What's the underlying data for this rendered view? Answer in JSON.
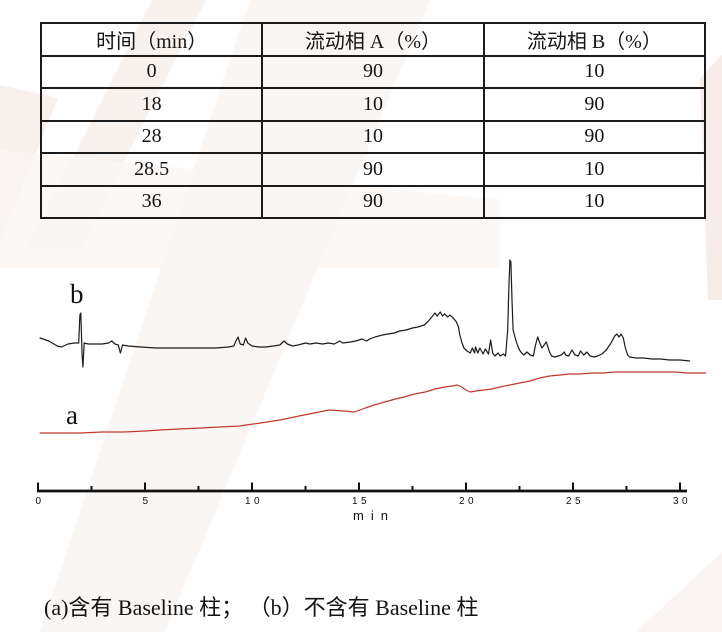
{
  "page": {
    "background": "#fefefe",
    "watermark_color": "#f3e7e2"
  },
  "table": {
    "headers": [
      "时间（min）",
      "流动相 A（%）",
      "流动相 B（%）"
    ],
    "rows": [
      [
        "0",
        "90",
        "10"
      ],
      [
        "18",
        "10",
        "90"
      ],
      [
        "28",
        "10",
        "90"
      ],
      [
        "28.5",
        "90",
        "10"
      ],
      [
        "36",
        "90",
        "10"
      ]
    ]
  },
  "chart_data": {
    "type": "line",
    "title": "",
    "xlabel": "min",
    "ylabel": "",
    "xlim": [
      0,
      30
    ],
    "ylim": [
      0,
      240
    ],
    "y_units": "arbitrary intensity",
    "grid": false,
    "legend_position": "none",
    "x_ticks": [
      "0",
      "5",
      "10",
      "15",
      "20",
      "25",
      "30"
    ],
    "x_major_ticks": [
      0,
      5,
      10,
      15,
      20,
      25,
      30
    ],
    "x_minor_ticks": [
      2.5,
      7.5,
      12.5,
      17.5,
      22.5,
      27.5
    ],
    "series": [
      {
        "name": "b",
        "label": "b",
        "color": "#1c1c1c",
        "description": "不含有 Baseline 柱",
        "points": [
          [
            0.1,
            152
          ],
          [
            0.5,
            149
          ],
          [
            0.9,
            144
          ],
          [
            1.1,
            143
          ],
          [
            1.4,
            146
          ],
          [
            1.7,
            147
          ],
          [
            1.9,
            147
          ],
          [
            1.96,
            175
          ],
          [
            2.0,
            177
          ],
          [
            2.06,
            135
          ],
          [
            2.1,
            123
          ],
          [
            2.16,
            147
          ],
          [
            2.35,
            146
          ],
          [
            2.65,
            146
          ],
          [
            3.0,
            146
          ],
          [
            3.3,
            147
          ],
          [
            3.45,
            149
          ],
          [
            3.6,
            146
          ],
          [
            3.75,
            145
          ],
          [
            3.85,
            137
          ],
          [
            3.95,
            145
          ],
          [
            4.2,
            144
          ],
          [
            4.8,
            143
          ],
          [
            5.5,
            142
          ],
          [
            6.2,
            142
          ],
          [
            6.9,
            142
          ],
          [
            7.6,
            142
          ],
          [
            8.3,
            142
          ],
          [
            8.9,
            143
          ],
          [
            9.15,
            144
          ],
          [
            9.25,
            149
          ],
          [
            9.35,
            153
          ],
          [
            9.45,
            146
          ],
          [
            9.6,
            145
          ],
          [
            9.7,
            152
          ],
          [
            9.8,
            147
          ],
          [
            10.0,
            144
          ],
          [
            10.3,
            143
          ],
          [
            10.65,
            143
          ],
          [
            11.0,
            144
          ],
          [
            11.3,
            145
          ],
          [
            11.5,
            149
          ],
          [
            11.65,
            146
          ],
          [
            11.9,
            144
          ],
          [
            12.15,
            145
          ],
          [
            12.5,
            147
          ],
          [
            12.7,
            146
          ],
          [
            13.0,
            147
          ],
          [
            13.3,
            146
          ],
          [
            13.55,
            147
          ],
          [
            13.85,
            146
          ],
          [
            14.1,
            149
          ],
          [
            14.25,
            147
          ],
          [
            14.6,
            148
          ],
          [
            14.85,
            149
          ],
          [
            15.15,
            151
          ],
          [
            15.35,
            149
          ],
          [
            15.5,
            151
          ],
          [
            15.75,
            153
          ],
          [
            16.1,
            155
          ],
          [
            16.35,
            156
          ],
          [
            16.65,
            157
          ],
          [
            16.9,
            159
          ],
          [
            17.2,
            160
          ],
          [
            17.5,
            162
          ],
          [
            17.75,
            163
          ],
          [
            18.05,
            165
          ],
          [
            18.2,
            168
          ],
          [
            18.4,
            173
          ],
          [
            18.55,
            177
          ],
          [
            18.65,
            174
          ],
          [
            18.8,
            178
          ],
          [
            18.9,
            174
          ],
          [
            19.0,
            176
          ],
          [
            19.15,
            173
          ],
          [
            19.25,
            175
          ],
          [
            19.4,
            172
          ],
          [
            19.55,
            168
          ],
          [
            19.65,
            163
          ],
          [
            19.7,
            156
          ],
          [
            19.8,
            148
          ],
          [
            19.9,
            142
          ],
          [
            20.05,
            139
          ],
          [
            20.2,
            137
          ],
          [
            20.3,
            142
          ],
          [
            20.4,
            137
          ],
          [
            20.45,
            143
          ],
          [
            20.55,
            137
          ],
          [
            20.65,
            142
          ],
          [
            20.8,
            136
          ],
          [
            20.9,
            141
          ],
          [
            21.05,
            136
          ],
          [
            21.15,
            150
          ],
          [
            21.25,
            137
          ],
          [
            21.35,
            134
          ],
          [
            21.5,
            137
          ],
          [
            21.6,
            134
          ],
          [
            21.75,
            136
          ],
          [
            21.85,
            134
          ],
          [
            21.95,
            160
          ],
          [
            22.0,
            200
          ],
          [
            22.05,
            230
          ],
          [
            22.1,
            228
          ],
          [
            22.15,
            190
          ],
          [
            22.2,
            160
          ],
          [
            22.3,
            152
          ],
          [
            22.4,
            145
          ],
          [
            22.5,
            140
          ],
          [
            22.6,
            137
          ],
          [
            22.7,
            135
          ],
          [
            22.85,
            138
          ],
          [
            23.0,
            135
          ],
          [
            23.15,
            134
          ],
          [
            23.25,
            145
          ],
          [
            23.35,
            153
          ],
          [
            23.45,
            147
          ],
          [
            23.55,
            142
          ],
          [
            23.65,
            145
          ],
          [
            23.75,
            148
          ],
          [
            23.9,
            138
          ],
          [
            24.0,
            134
          ],
          [
            24.15,
            133
          ],
          [
            24.3,
            134
          ],
          [
            24.45,
            135
          ],
          [
            24.6,
            138
          ],
          [
            24.65,
            135
          ],
          [
            24.8,
            134
          ],
          [
            24.95,
            140
          ],
          [
            25.1,
            135
          ],
          [
            25.25,
            134
          ],
          [
            25.35,
            139
          ],
          [
            25.5,
            135
          ],
          [
            25.65,
            138
          ],
          [
            25.8,
            134
          ],
          [
            26.0,
            133
          ],
          [
            26.15,
            134
          ],
          [
            26.35,
            136
          ],
          [
            26.55,
            140
          ],
          [
            26.75,
            146
          ],
          [
            26.85,
            150
          ],
          [
            26.95,
            154
          ],
          [
            27.05,
            156
          ],
          [
            27.15,
            153
          ],
          [
            27.25,
            156
          ],
          [
            27.35,
            152
          ],
          [
            27.45,
            142
          ],
          [
            27.55,
            135
          ],
          [
            27.65,
            133
          ],
          [
            27.95,
            132
          ],
          [
            28.3,
            132
          ],
          [
            28.7,
            131
          ],
          [
            29.1,
            131
          ],
          [
            29.5,
            130
          ],
          [
            30.0,
            130
          ],
          [
            30.45,
            129
          ]
        ]
      },
      {
        "name": "a",
        "label": "a",
        "color": "#bf3a2e",
        "description": "含有 Baseline 柱",
        "points": [
          [
            0.1,
            57
          ],
          [
            1.0,
            57
          ],
          [
            2.0,
            57
          ],
          [
            3.0,
            58
          ],
          [
            4.0,
            58
          ],
          [
            5.0,
            59
          ],
          [
            5.7,
            60
          ],
          [
            6.6,
            61
          ],
          [
            7.6,
            62
          ],
          [
            8.5,
            63
          ],
          [
            9.4,
            64
          ],
          [
            10.4,
            67
          ],
          [
            11.3,
            70
          ],
          [
            12.2,
            74
          ],
          [
            12.9,
            77
          ],
          [
            13.6,
            80
          ],
          [
            14.3,
            79
          ],
          [
            14.8,
            78
          ],
          [
            15.3,
            82
          ],
          [
            15.7,
            85
          ],
          [
            16.2,
            88
          ],
          [
            16.7,
            91
          ],
          [
            17.1,
            93
          ],
          [
            17.6,
            96
          ],
          [
            18.1,
            98
          ],
          [
            18.55,
            101
          ],
          [
            19.0,
            103
          ],
          [
            19.35,
            104
          ],
          [
            19.6,
            105
          ],
          [
            19.8,
            103
          ],
          [
            20.0,
            100
          ],
          [
            20.2,
            98
          ],
          [
            20.45,
            99
          ],
          [
            20.85,
            100
          ],
          [
            21.2,
            101
          ],
          [
            21.6,
            103
          ],
          [
            22.05,
            105
          ],
          [
            22.5,
            107
          ],
          [
            23.0,
            109
          ],
          [
            23.45,
            112
          ],
          [
            23.9,
            114
          ],
          [
            24.4,
            115
          ],
          [
            24.85,
            116
          ],
          [
            25.3,
            116
          ],
          [
            25.9,
            117
          ],
          [
            26.45,
            117
          ],
          [
            27.0,
            118
          ],
          [
            27.55,
            118
          ],
          [
            28.1,
            118
          ],
          [
            28.7,
            118
          ],
          [
            29.25,
            118
          ],
          [
            29.8,
            118
          ],
          [
            30.35,
            117
          ],
          [
            30.9,
            117
          ],
          [
            31.2,
            117
          ]
        ]
      }
    ]
  },
  "caption": {
    "text": "(a)含有 Baseline 柱； （b）不含有 Baseline 柱"
  }
}
